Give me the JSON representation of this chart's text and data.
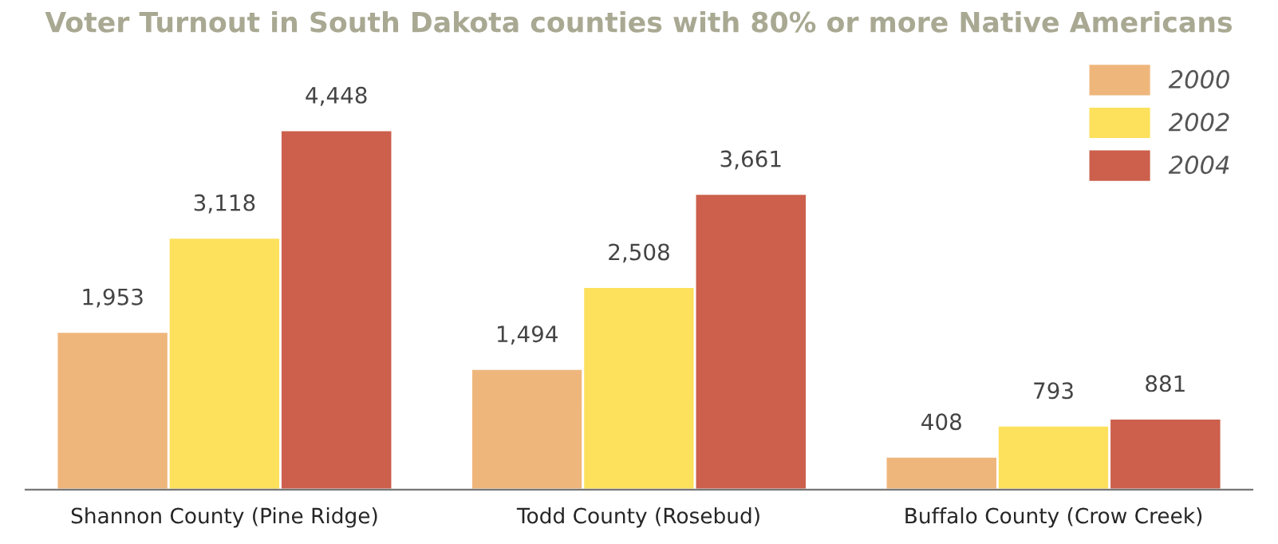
{
  "chart_data": {
    "type": "bar",
    "title": "Voter Turnout in South Dakota counties with 80% or more Native Americans",
    "categories": [
      "Shannon County (Pine Ridge)",
      "Todd County (Rosebud)",
      "Buffalo County (Crow Creek)"
    ],
    "series": [
      {
        "name": "2000",
        "color": "#efb67c",
        "values": [
          1953,
          1494,
          408
        ],
        "value_labels": [
          "1,953",
          "1,494",
          "408"
        ]
      },
      {
        "name": "2002",
        "color": "#fde15c",
        "values": [
          3118,
          2508,
          793
        ],
        "value_labels": [
          "3,118",
          "2,508",
          "793"
        ]
      },
      {
        "name": "2004",
        "color": "#cc604c",
        "values": [
          4448,
          3661,
          881
        ],
        "value_labels": [
          "4,448",
          "3,661",
          "881"
        ]
      }
    ],
    "legend": "top right",
    "grid": false
  }
}
